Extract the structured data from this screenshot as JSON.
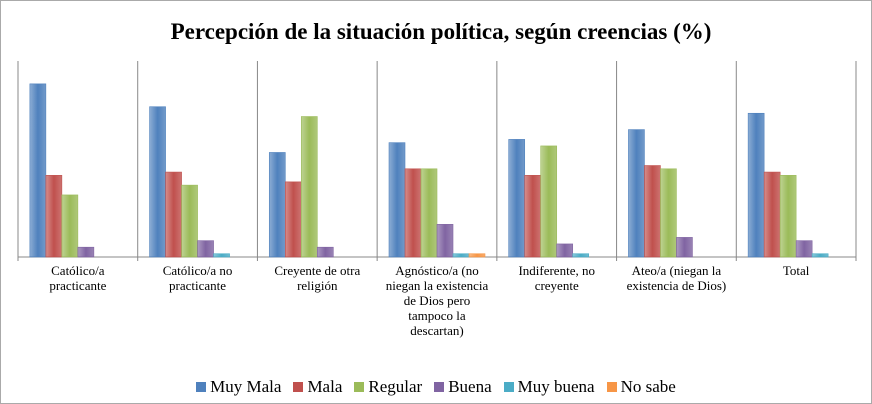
{
  "chart_data": {
    "type": "bar",
    "title": "Percepción de la situación política, según creencias (%)",
    "categories": [
      "Católico/a practicante",
      "Católico/a no practicante",
      "Creyente de otra religión",
      "Agnóstico/a (no niegan la existencia de Dios pero tampoco la descartan)",
      "Indiferente, no creyente",
      "Ateo/a (niegan la existencia de Dios)",
      "Total"
    ],
    "ylim": [
      0,
      60
    ],
    "legend": "bottom",
    "series": [
      {
        "name": "Muy Mala",
        "color": "#4f81bd",
        "values": [
          53,
          46,
          32,
          35,
          36,
          39,
          44
        ]
      },
      {
        "name": "Mala",
        "color": "#c0504d",
        "values": [
          25,
          26,
          23,
          27,
          25,
          28,
          26
        ]
      },
      {
        "name": "Regular",
        "color": "#9bbb59",
        "values": [
          19,
          22,
          43,
          27,
          34,
          27,
          25
        ]
      },
      {
        "name": "Buena",
        "color": "#8064a2",
        "values": [
          3,
          5,
          3,
          10,
          4,
          6,
          5
        ]
      },
      {
        "name": "Muy buena",
        "color": "#4bacc6",
        "values": [
          0,
          1,
          0,
          1,
          1,
          0,
          1
        ]
      },
      {
        "name": "No sabe",
        "color": "#f79646",
        "values": [
          0,
          0,
          0,
          1,
          0,
          0,
          0
        ]
      }
    ]
  }
}
